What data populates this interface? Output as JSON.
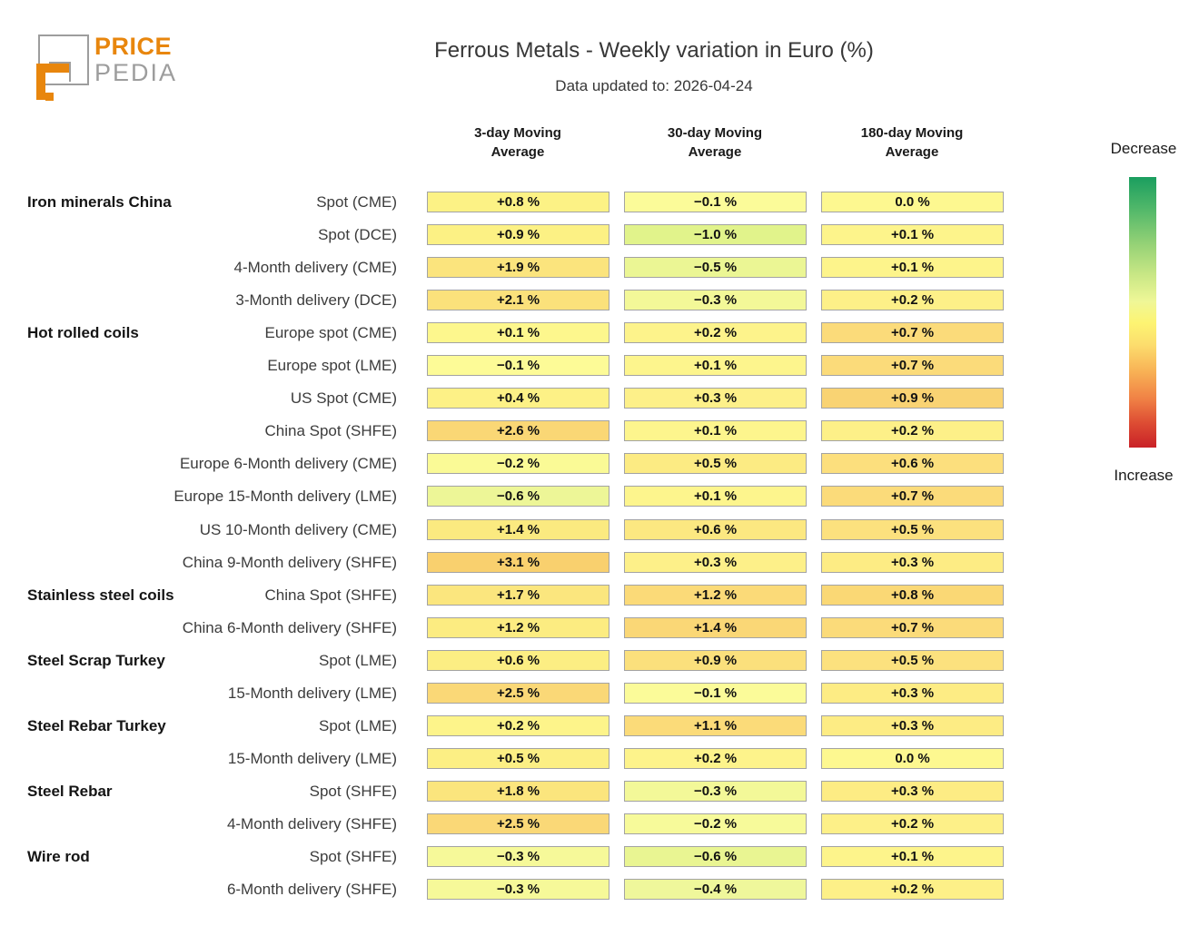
{
  "logo": {
    "price": "PRICE",
    "pedia": "PEDIA",
    "orange_color": "#e8860d",
    "gray_color": "#9d9d9d"
  },
  "header": {
    "title": "Ferrous Metals - Weekly variation in Euro (%)",
    "subtitle": "Data updated to: 2026-04-24"
  },
  "legend": {
    "decrease_label": "Decrease",
    "increase_label": "Increase",
    "top_color": "#1a9e5f",
    "mid_color": "#fdf472",
    "bottom_color": "#c92127"
  },
  "chart_data": {
    "type": "heatmap",
    "title": "Ferrous Metals - Weekly variation in Euro (%)",
    "subtitle": "Data updated to: 2026-04-24",
    "unit": "%",
    "columns": [
      "3-day Moving Average",
      "30-day Moving Average",
      "180-day Moving Average"
    ],
    "legend": {
      "top": "Decrease",
      "bottom": "Increase"
    },
    "rows": [
      {
        "group": "Iron minerals China",
        "label": "Spot (CME)",
        "values": [
          0.8,
          -0.1,
          0.0
        ],
        "display": [
          "+0.8 %",
          "−0.1 %",
          "0.0 %"
        ],
        "colors": [
          "#fcf285",
          "#fbfb99",
          "#fdf890"
        ]
      },
      {
        "group": "",
        "label": "Spot (DCE)",
        "values": [
          0.9,
          -1.0,
          0.1
        ],
        "display": [
          "+0.9 %",
          "−1.0 %",
          "+0.1 %"
        ],
        "colors": [
          "#fcf184",
          "#e1f38b",
          "#fdf48b"
        ]
      },
      {
        "group": "",
        "label": "4-Month delivery (CME)",
        "values": [
          1.9,
          -0.5,
          0.1
        ],
        "display": [
          "+1.9 %",
          "−0.5 %",
          "+0.1 %"
        ],
        "colors": [
          "#fbe47d",
          "#ebf694",
          "#fdf48b"
        ]
      },
      {
        "group": "",
        "label": "3-Month delivery (DCE)",
        "values": [
          2.1,
          -0.3,
          0.2
        ],
        "display": [
          "+2.1 %",
          "−0.3 %",
          "+0.2 %"
        ],
        "colors": [
          "#fbe17b",
          "#f3f898",
          "#fdf088"
        ]
      },
      {
        "group": "Hot rolled coils",
        "label": "Europe spot (CME)",
        "values": [
          0.1,
          0.2,
          0.7
        ],
        "display": [
          "+0.1 %",
          "+0.2 %",
          "+0.7 %"
        ],
        "colors": [
          "#fdf78d",
          "#fdf38b",
          "#fbdb7a"
        ]
      },
      {
        "group": "",
        "label": "Europe spot (LME)",
        "values": [
          -0.1,
          0.1,
          0.7
        ],
        "display": [
          "−0.1 %",
          "+0.1 %",
          "+0.7 %"
        ],
        "colors": [
          "#fdfb97",
          "#fdf58d",
          "#fbdb7a"
        ]
      },
      {
        "group": "",
        "label": "US Spot (CME)",
        "values": [
          0.4,
          0.3,
          0.9
        ],
        "display": [
          "+0.4 %",
          "+0.3 %",
          "+0.9 %"
        ],
        "colors": [
          "#fdf186",
          "#fdf089",
          "#f9d373"
        ]
      },
      {
        "group": "",
        "label": "China Spot (SHFE)",
        "values": [
          2.6,
          0.1,
          0.2
        ],
        "display": [
          "+2.6 %",
          "+0.1 %",
          "+0.2 %"
        ],
        "colors": [
          "#fad775",
          "#fdf58d",
          "#fdf088"
        ]
      },
      {
        "group": "",
        "label": "Europe 6-Month delivery (CME)",
        "values": [
          -0.2,
          0.5,
          0.6
        ],
        "display": [
          "−0.2 %",
          "+0.5 %",
          "+0.6 %"
        ],
        "colors": [
          "#fafa96",
          "#fceb83",
          "#fcdf7d"
        ]
      },
      {
        "group": "",
        "label": "Europe 15-Month delivery (LME)",
        "values": [
          -0.6,
          0.1,
          0.7
        ],
        "display": [
          "−0.6 %",
          "+0.1 %",
          "+0.7 %"
        ],
        "colors": [
          "#edf697",
          "#fdf58d",
          "#fbdb7a"
        ]
      },
      {
        "group": "",
        "label": "US 10-Month delivery (CME)",
        "values": [
          1.4,
          0.6,
          0.5
        ],
        "display": [
          "+1.4 %",
          "+0.6 %",
          "+0.5 %"
        ],
        "colors": [
          "#fbea80",
          "#fce881",
          "#fce17e"
        ]
      },
      {
        "group": "",
        "label": "China 9-Month delivery (SHFE)",
        "values": [
          3.1,
          0.3,
          0.3
        ],
        "display": [
          "+3.1 %",
          "+0.3 %",
          "+0.3 %"
        ],
        "colors": [
          "#f9d06e",
          "#fdf089",
          "#fdec84"
        ]
      },
      {
        "group": "Stainless steel coils",
        "label": "China Spot (SHFE)",
        "values": [
          1.7,
          1.2,
          0.8
        ],
        "display": [
          "+1.7 %",
          "+1.2 %",
          "+0.8 %"
        ],
        "colors": [
          "#fbe67e",
          "#fbda78",
          "#fad875"
        ]
      },
      {
        "group": "",
        "label": "China 6-Month delivery (SHFE)",
        "values": [
          1.2,
          1.4,
          0.7
        ],
        "display": [
          "+1.2 %",
          "+1.4 %",
          "+0.7 %"
        ],
        "colors": [
          "#fcec81",
          "#fad776",
          "#fbdb7a"
        ]
      },
      {
        "group": "Steel Scrap Turkey",
        "label": "Spot (LME)",
        "values": [
          0.6,
          0.9,
          0.5
        ],
        "display": [
          "+0.6 %",
          "+0.9 %",
          "+0.5 %"
        ],
        "colors": [
          "#fcee83",
          "#fbe07c",
          "#fce17e"
        ]
      },
      {
        "group": "",
        "label": "15-Month delivery (LME)",
        "values": [
          2.5,
          -0.1,
          0.3
        ],
        "display": [
          "+2.5 %",
          "−0.1 %",
          "+0.3 %"
        ],
        "colors": [
          "#fad877",
          "#fbfb99",
          "#fdec84"
        ]
      },
      {
        "group": "Steel Rebar Turkey",
        "label": "Spot (LME)",
        "values": [
          0.2,
          1.1,
          0.3
        ],
        "display": [
          "+0.2 %",
          "+1.1 %",
          "+0.3 %"
        ],
        "colors": [
          "#fdf48a",
          "#fbdb79",
          "#fdec84"
        ]
      },
      {
        "group": "",
        "label": "15-Month delivery (LME)",
        "values": [
          0.5,
          0.2,
          0.0
        ],
        "display": [
          "+0.5 %",
          "+0.2 %",
          "0.0 %"
        ],
        "colors": [
          "#fcef84",
          "#fdf38b",
          "#fdf890"
        ]
      },
      {
        "group": "Steel Rebar",
        "label": "Spot (SHFE)",
        "values": [
          1.8,
          -0.3,
          0.3
        ],
        "display": [
          "+1.8 %",
          "−0.3 %",
          "+0.3 %"
        ],
        "colors": [
          "#fbe57d",
          "#f3f898",
          "#fdec84"
        ]
      },
      {
        "group": "",
        "label": "4-Month delivery (SHFE)",
        "values": [
          2.5,
          -0.2,
          0.2
        ],
        "display": [
          "+2.5 %",
          "−0.2 %",
          "+0.2 %"
        ],
        "colors": [
          "#fad877",
          "#f7fa9a",
          "#fdf088"
        ]
      },
      {
        "group": "Wire rod",
        "label": "Spot (SHFE)",
        "values": [
          -0.3,
          -0.6,
          0.1
        ],
        "display": [
          "−0.3 %",
          "−0.6 %",
          "+0.1 %"
        ],
        "colors": [
          "#f6f999",
          "#e9f592",
          "#fdf48b"
        ]
      },
      {
        "group": "",
        "label": "6-Month delivery (SHFE)",
        "values": [
          -0.3,
          -0.4,
          0.2
        ],
        "display": [
          "−0.3 %",
          "−0.4 %",
          "+0.2 %"
        ],
        "colors": [
          "#f6f999",
          "#eff79b",
          "#fdf088"
        ]
      }
    ]
  }
}
